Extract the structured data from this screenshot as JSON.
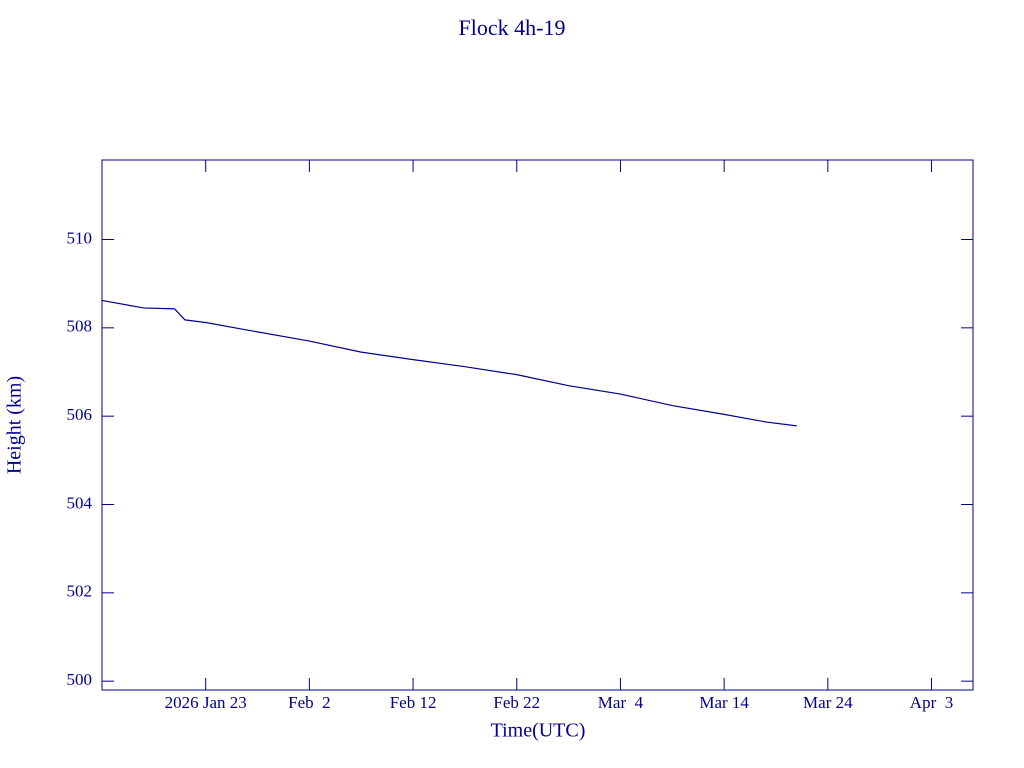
{
  "chart_data": {
    "type": "line",
    "title": "Flock 4h-19",
    "x_label": "Time(UTC)",
    "y_label": "Height (km)",
    "x": [
      "2026-01-13",
      "2026-01-17",
      "2026-01-20",
      "2026-01-21",
      "2026-01-23",
      "2026-01-27",
      "2026-02-02",
      "2026-02-07",
      "2026-02-12",
      "2026-02-17",
      "2026-02-22",
      "2026-02-27",
      "2026-03-04",
      "2026-03-09",
      "2026-03-14",
      "2026-03-18",
      "2026-03-21"
    ],
    "series": [
      {
        "name": "Flock 4h-19",
        "color": "#00008b",
        "values": [
          508.62,
          508.45,
          508.43,
          508.18,
          508.12,
          507.95,
          507.7,
          507.45,
          507.28,
          507.12,
          506.94,
          506.69,
          506.5,
          506.24,
          506.04,
          505.87,
          505.78
        ]
      }
    ],
    "xlim": [
      "2026-01-13",
      "2026-04-07"
    ],
    "xticks": [
      {
        "value": "2026-01-23",
        "label": "2026 Jan 23"
      },
      {
        "value": "2026-02-02",
        "label": "Feb  2"
      },
      {
        "value": "2026-02-12",
        "label": "Feb 12"
      },
      {
        "value": "2026-02-22",
        "label": "Feb 22"
      },
      {
        "value": "2026-03-04",
        "label": "Mar  4"
      },
      {
        "value": "2026-03-14",
        "label": "Mar 14"
      },
      {
        "value": "2026-03-24",
        "label": "Mar 24"
      },
      {
        "value": "2026-04-03",
        "label": "Apr  3"
      }
    ],
    "ylim": [
      499.8,
      511.8
    ],
    "yticks": [
      500,
      502,
      504,
      506,
      508,
      510
    ],
    "grid": false
  }
}
